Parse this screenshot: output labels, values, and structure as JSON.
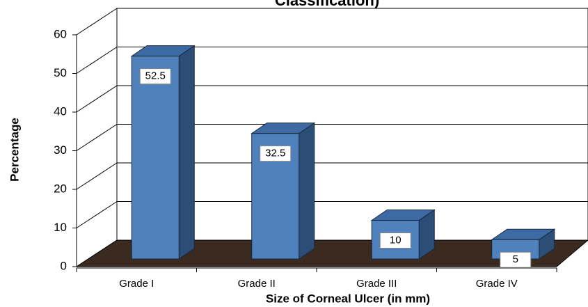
{
  "chart_data": {
    "type": "bar",
    "title": "Classification)",
    "categories": [
      "Grade I",
      "Grade II",
      "Grade III",
      "Grade IV"
    ],
    "values": [
      52.5,
      32.5,
      10,
      5
    ],
    "color": "#4f81bd",
    "ylim": [
      0,
      60
    ],
    "yticks": [
      0,
      10,
      20,
      30,
      40,
      50,
      60
    ],
    "grid": true,
    "x_label": "Size of Corneal Ulcer (in mm)",
    "y_label": "Percentage"
  }
}
